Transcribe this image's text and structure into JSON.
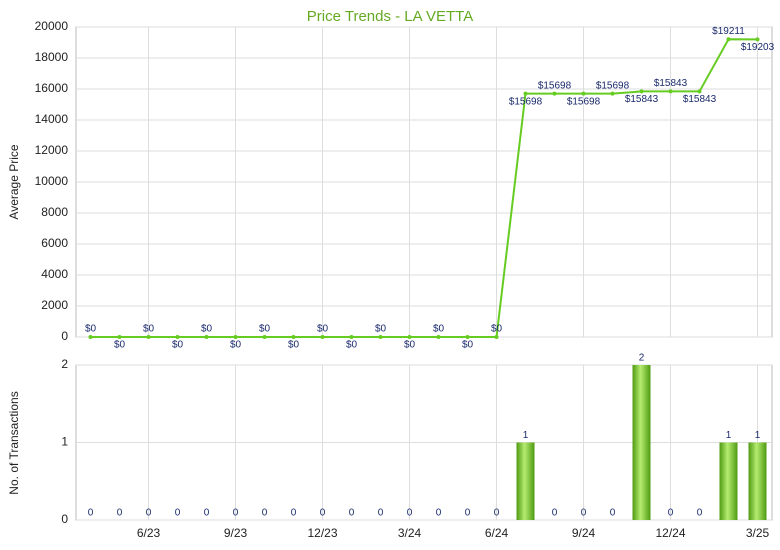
{
  "chart_data": [
    {
      "type": "line",
      "title": "Price Trends - LA VETTA",
      "y_label": "Average Price",
      "values": [
        0,
        0,
        0,
        0,
        0,
        0,
        0,
        0,
        0,
        0,
        0,
        0,
        0,
        0,
        0,
        15698,
        15698,
        15698,
        15698,
        15843,
        15843,
        15843,
        19211,
        19203
      ],
      "value_labels": [
        "$0",
        "$0",
        "$0",
        "$0",
        "$0",
        "$0",
        "$0",
        "$0",
        "$0",
        "$0",
        "$0",
        "$0",
        "$0",
        "$0",
        "$0",
        "$15698",
        "$15698",
        "$15698",
        "$15698",
        "$15843",
        "$15843",
        "$15843",
        "$19211",
        "$19203"
      ],
      "color": "#66cc22",
      "ylim": [
        0,
        20000
      ],
      "yticks": [
        0,
        2000,
        4000,
        6000,
        8000,
        10000,
        12000,
        14000,
        16000,
        18000,
        20000
      ],
      "grid": true
    },
    {
      "type": "bar",
      "y_label": "No. of Transactions",
      "categories": [
        null,
        null,
        "6/23",
        null,
        null,
        "9/23",
        null,
        null,
        "12/23",
        null,
        null,
        "3/24",
        null,
        null,
        "6/24",
        null,
        null,
        "9/24",
        null,
        null,
        "12/24",
        null,
        null,
        "3/25"
      ],
      "values": [
        0,
        0,
        0,
        0,
        0,
        0,
        0,
        0,
        0,
        0,
        0,
        0,
        0,
        0,
        0,
        1,
        0,
        0,
        0,
        2,
        0,
        0,
        1,
        1
      ],
      "color": "#66bb22",
      "ylim": [
        0,
        2
      ],
      "yticks": [
        0,
        1,
        2
      ],
      "grid": true
    }
  ]
}
